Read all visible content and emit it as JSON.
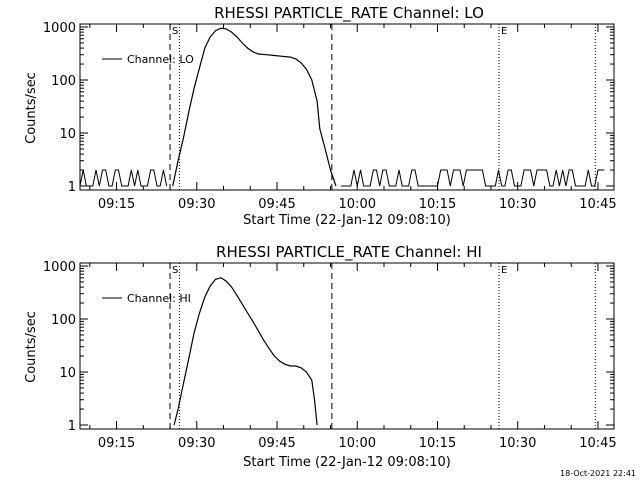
{
  "footer_timestamp": "18-Oct-2021 22:41",
  "chart_data": [
    {
      "type": "line",
      "title": "RHESSI PARTICLE_RATE Channel: LO",
      "xlabel": "Start Time (22-Jan-12 09:08:10)",
      "ylabel": "Counts/sec",
      "yscale": "log",
      "ylim": [
        1,
        1000
      ],
      "y_ticks": [
        1,
        10,
        100,
        1000
      ],
      "y_tick_labels": [
        "1",
        "10",
        "100",
        "1000"
      ],
      "x_tick_labels": [
        "09:15",
        "09:30",
        "09:45",
        "10:00",
        "10:15",
        "10:30",
        "10:45"
      ],
      "x_ticks": [
        "09:15",
        "09:30",
        "09:45",
        "10:00",
        "10:15",
        "10:30",
        "10:45"
      ],
      "xlim": [
        "09:08:10",
        "10:48:00"
      ],
      "legend": {
        "label": "Channel: LO",
        "position": "top-left"
      },
      "markers": [
        {
          "time": "09:25:00",
          "style": "dashed",
          "label": "S"
        },
        {
          "time": "09:26:45",
          "style": "dotted",
          "label": ""
        },
        {
          "time": "09:55:15",
          "style": "dashed",
          "label": ""
        },
        {
          "time": "10:26:30",
          "style": "dotted",
          "label": "E"
        },
        {
          "time": "10:44:30",
          "style": "dotted",
          "label": ""
        }
      ],
      "series": [
        {
          "values": [
            [
              "09:25:30",
              1
            ],
            [
              "09:26:30",
              3
            ],
            [
              "09:27:30",
              8
            ],
            [
              "09:28:30",
              25
            ],
            [
              "09:29:30",
              70
            ],
            [
              "09:30:30",
              170
            ],
            [
              "09:31:30",
              400
            ],
            [
              "09:32:30",
              650
            ],
            [
              "09:33:30",
              850
            ],
            [
              "09:34:30",
              950
            ],
            [
              "09:35:30",
              920
            ],
            [
              "09:36:30",
              800
            ],
            [
              "09:37:30",
              650
            ],
            [
              "09:38:30",
              500
            ],
            [
              "09:39:30",
              400
            ],
            [
              "09:40:30",
              340
            ],
            [
              "09:41:30",
              310
            ],
            [
              "09:43:00",
              300
            ],
            [
              "09:44:30",
              290
            ],
            [
              "09:46:00",
              280
            ],
            [
              "09:47:30",
              270
            ],
            [
              "09:48:30",
              250
            ],
            [
              "09:49:30",
              210
            ],
            [
              "09:50:30",
              160
            ],
            [
              "09:51:30",
              100
            ],
            [
              "09:52:30",
              40
            ],
            [
              "09:53:00",
              12
            ],
            [
              "09:54:00",
              5
            ],
            [
              "09:55:00",
              2
            ],
            [
              "09:56:00",
              1
            ]
          ]
        }
      ],
      "noise": {
        "description_values": [
          1,
          2
        ],
        "ranges": [
          [
            "09:08:10",
            "09:24:30"
          ],
          [
            "09:57:00",
            "10:46:30"
          ]
        ]
      }
    },
    {
      "type": "line",
      "title": "RHESSI PARTICLE_RATE Channel: HI",
      "xlabel": "Start Time (22-Jan-12 09:08:10)",
      "ylabel": "Counts/sec",
      "yscale": "log",
      "ylim": [
        1,
        1000
      ],
      "y_ticks": [
        1,
        10,
        100,
        1000
      ],
      "y_tick_labels": [
        "1",
        "10",
        "100",
        "1000"
      ],
      "x_tick_labels": [
        "09:15",
        "09:30",
        "09:45",
        "10:00",
        "10:15",
        "10:30",
        "10:45"
      ],
      "x_ticks": [
        "09:15",
        "09:30",
        "09:45",
        "10:00",
        "10:15",
        "10:30",
        "10:45"
      ],
      "xlim": [
        "09:08:10",
        "10:48:00"
      ],
      "legend": {
        "label": "Channel: HI",
        "position": "top-left"
      },
      "markers": [
        {
          "time": "09:25:00",
          "style": "dashed",
          "label": "S"
        },
        {
          "time": "09:26:45",
          "style": "dotted",
          "label": ""
        },
        {
          "time": "09:55:15",
          "style": "dashed",
          "label": ""
        },
        {
          "time": "10:26:30",
          "style": "dotted",
          "label": "E"
        },
        {
          "time": "10:44:30",
          "style": "dotted",
          "label": ""
        }
      ],
      "series": [
        {
          "values": [
            [
              "09:25:45",
              1
            ],
            [
              "09:26:30",
              2
            ],
            [
              "09:27:30",
              6
            ],
            [
              "09:28:30",
              18
            ],
            [
              "09:29:30",
              55
            ],
            [
              "09:30:30",
              130
            ],
            [
              "09:31:30",
              260
            ],
            [
              "09:32:30",
              420
            ],
            [
              "09:33:30",
              560
            ],
            [
              "09:34:30",
              600
            ],
            [
              "09:35:30",
              520
            ],
            [
              "09:36:30",
              400
            ],
            [
              "09:37:30",
              280
            ],
            [
              "09:38:30",
              190
            ],
            [
              "09:39:30",
              130
            ],
            [
              "09:40:30",
              90
            ],
            [
              "09:41:30",
              60
            ],
            [
              "09:42:30",
              40
            ],
            [
              "09:43:30",
              28
            ],
            [
              "09:44:30",
              20
            ],
            [
              "09:45:30",
              16
            ],
            [
              "09:46:30",
              14
            ],
            [
              "09:47:30",
              13
            ],
            [
              "09:48:30",
              13
            ],
            [
              "09:49:30",
              12
            ],
            [
              "09:50:30",
              10
            ],
            [
              "09:51:30",
              7
            ],
            [
              "09:52:00",
              3
            ],
            [
              "09:52:30",
              1
            ]
          ]
        }
      ]
    }
  ]
}
